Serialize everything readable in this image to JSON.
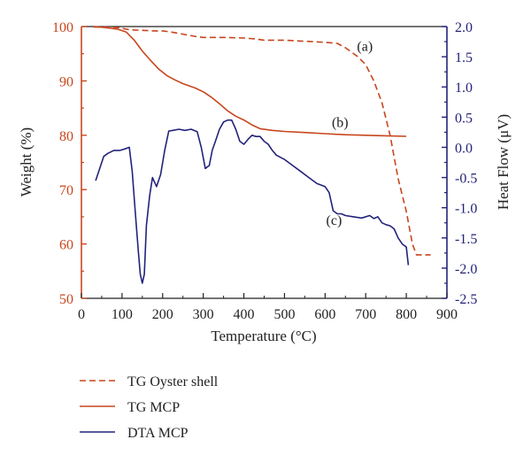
{
  "chart_data": {
    "type": "line",
    "xlabel": "Temperature (°C)",
    "ylabel_left": "Weight (%)",
    "ylabel_right": "Heat Flow (μV)",
    "xlim": [
      0,
      900
    ],
    "ylim_left": [
      50,
      100
    ],
    "ylim_right": [
      -2.5,
      2.0
    ],
    "x_ticks": [
      "0",
      "100",
      "200",
      "300",
      "400",
      "500",
      "600",
      "700",
      "800",
      "900"
    ],
    "y_left_ticks": [
      "50",
      "60",
      "70",
      "80",
      "90",
      "100"
    ],
    "y_right_ticks": [
      "2.0",
      "1.5",
      "1.0",
      "0.5",
      "0.0",
      "-0.5",
      "-1.0",
      "-1.5",
      "-2.0",
      "-2.5"
    ],
    "colors": {
      "left_axis": "#c8461e",
      "right_axis": "#23237a",
      "tg": "#c8461e",
      "dta": "#23237a"
    },
    "series": [
      {
        "name": "TG Oyster shell",
        "axis": "left",
        "style": "dashed",
        "color": "#c8461e",
        "x": [
          30,
          60,
          90,
          120,
          150,
          180,
          200,
          220,
          250,
          280,
          300,
          350,
          400,
          430,
          450,
          500,
          550,
          600,
          630,
          650,
          680,
          700,
          720,
          740,
          760,
          780,
          800,
          815,
          825,
          840,
          860
        ],
        "y": [
          99.9,
          99.9,
          99.8,
          99.4,
          99.3,
          99.2,
          99.2,
          99.0,
          98.6,
          98.2,
          98.0,
          98.0,
          97.9,
          97.7,
          97.5,
          97.5,
          97.3,
          97.1,
          96.9,
          96.1,
          94.5,
          93.0,
          90.0,
          86.0,
          80.0,
          72.0,
          66.0,
          60.0,
          58.0,
          58.0,
          58.0
        ]
      },
      {
        "name": "TG MCP",
        "axis": "left",
        "style": "solid",
        "color": "#c8461e",
        "x": [
          30,
          60,
          90,
          110,
          130,
          150,
          170,
          190,
          210,
          230,
          250,
          280,
          300,
          320,
          340,
          360,
          380,
          400,
          420,
          440,
          470,
          500,
          550,
          600,
          650,
          700,
          750,
          800
        ],
        "y": [
          100,
          99.8,
          99.5,
          99.0,
          97.5,
          95.5,
          93.8,
          92.2,
          91.0,
          90.2,
          89.5,
          88.7,
          88.0,
          87.0,
          85.8,
          84.5,
          83.5,
          82.8,
          81.9,
          81.2,
          80.9,
          80.7,
          80.5,
          80.3,
          80.1,
          80.0,
          79.9,
          79.8
        ]
      },
      {
        "name": "DTA MCP",
        "axis": "right",
        "style": "solid",
        "color": "#23237a",
        "x": [
          35,
          45,
          55,
          65,
          80,
          95,
          110,
          118,
          125,
          133,
          140,
          145,
          150,
          155,
          160,
          168,
          175,
          185,
          195,
          205,
          215,
          225,
          240,
          255,
          270,
          285,
          295,
          305,
          315,
          322,
          330,
          340,
          350,
          360,
          370,
          380,
          390,
          400,
          410,
          420,
          430,
          440,
          450,
          460,
          470,
          480,
          500,
          520,
          540,
          560,
          580,
          600,
          610,
          620,
          630,
          640,
          650,
          670,
          690,
          710,
          720,
          730,
          740,
          750,
          760,
          770,
          780,
          790,
          800,
          805
        ],
        "y": [
          -0.55,
          -0.35,
          -0.15,
          -0.1,
          -0.05,
          -0.05,
          -0.02,
          0.0,
          -0.4,
          -1.1,
          -1.7,
          -2.1,
          -2.25,
          -2.1,
          -1.3,
          -0.8,
          -0.5,
          -0.65,
          -0.45,
          -0.05,
          0.27,
          0.28,
          0.3,
          0.28,
          0.3,
          0.26,
          0.0,
          -0.35,
          -0.3,
          -0.05,
          0.1,
          0.3,
          0.42,
          0.45,
          0.45,
          0.3,
          0.1,
          0.05,
          0.13,
          0.2,
          0.18,
          0.18,
          0.1,
          0.05,
          -0.05,
          -0.13,
          -0.2,
          -0.3,
          -0.4,
          -0.5,
          -0.6,
          -0.65,
          -0.75,
          -1.05,
          -1.1,
          -1.1,
          -1.13,
          -1.15,
          -1.17,
          -1.13,
          -1.18,
          -1.15,
          -1.25,
          -1.28,
          -1.3,
          -1.35,
          -1.5,
          -1.6,
          -1.65,
          -1.95
        ]
      }
    ],
    "annotations": [
      {
        "label": "(a)",
        "x": 698,
        "y_left": 95.5
      },
      {
        "label": "(b)",
        "x": 637,
        "y_left": 81.5
      },
      {
        "label": "(c)",
        "x": 622,
        "y_left": 63.5
      }
    ],
    "legend": {
      "position": "bottom-left",
      "entries": [
        {
          "label": "TG Oyster shell",
          "style": "dashed",
          "color": "#c8461e"
        },
        {
          "label": "TG MCP",
          "style": "solid",
          "color": "#c8461e"
        },
        {
          "label": "DTA MCP",
          "style": "solid",
          "color": "#23237a"
        }
      ]
    }
  }
}
